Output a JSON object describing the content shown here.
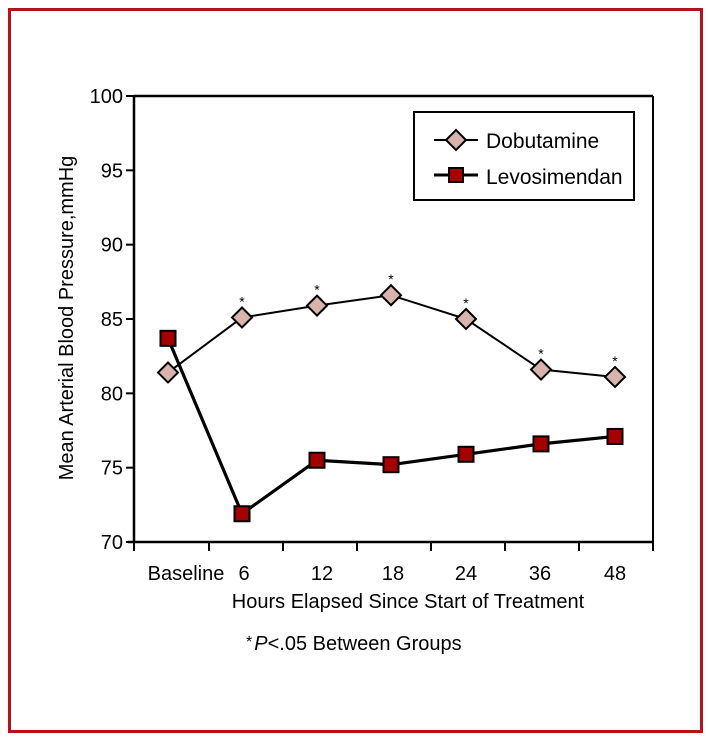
{
  "chart_data": {
    "type": "line",
    "title": "",
    "xlabel": "Hours Elapsed Since Start of Treatment",
    "ylabel": "Mean Arterial Blood Pressure,mmHg",
    "categories": [
      "Baseline",
      "6",
      "12",
      "18",
      "24",
      "36",
      "48"
    ],
    "ylim": [
      70,
      100
    ],
    "yticks": [
      70,
      75,
      80,
      85,
      90,
      95,
      100
    ],
    "grid": false,
    "legend_position": "top-right",
    "series": [
      {
        "name": "Dobutamine",
        "marker": "diamond",
        "color": "#d9b3ae",
        "values": [
          81.4,
          85.1,
          85.9,
          86.6,
          85.0,
          81.6,
          81.1
        ],
        "significant": [
          false,
          true,
          true,
          true,
          true,
          true,
          true
        ]
      },
      {
        "name": "Levosimendan",
        "marker": "square",
        "color": "#a30000",
        "values": [
          83.7,
          71.9,
          75.5,
          75.2,
          75.9,
          76.6,
          77.1
        ]
      }
    ],
    "annotation": {
      "star": "*",
      "p_italic": "P",
      "rest": "<.05 Between Groups"
    }
  },
  "frame_color": "#b5121b"
}
